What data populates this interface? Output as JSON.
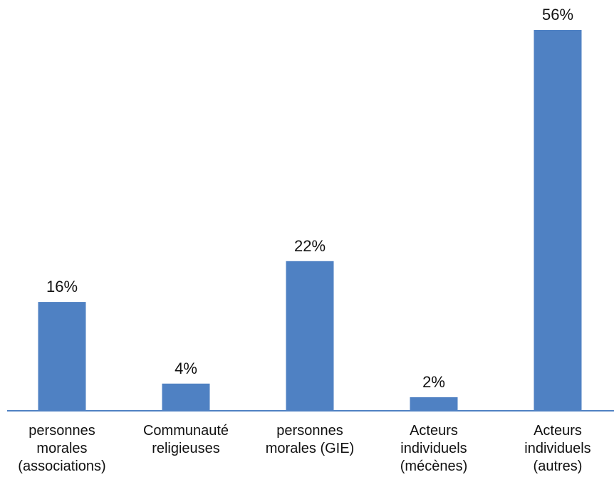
{
  "chart_data": {
    "type": "bar",
    "categories": [
      [
        "personnes",
        "morales",
        "(associations)"
      ],
      [
        "Communauté",
        "religieuses"
      ],
      [
        "personnes",
        "morales (GIE)"
      ],
      [
        "Acteurs",
        "individuels",
        "(mécènes)"
      ],
      [
        "Acteurs",
        "individuels",
        "(autres)"
      ]
    ],
    "values": [
      16,
      4,
      22,
      2,
      56
    ],
    "data_labels": [
      "16%",
      "4%",
      "22%",
      "2%",
      "56%"
    ],
    "unit": "%",
    "ylim": [
      0,
      56
    ],
    "grid": false,
    "legend": "none",
    "colors": {
      "bar": "#4f81c3",
      "axis": "#4f81c3",
      "text": "#111111"
    }
  }
}
